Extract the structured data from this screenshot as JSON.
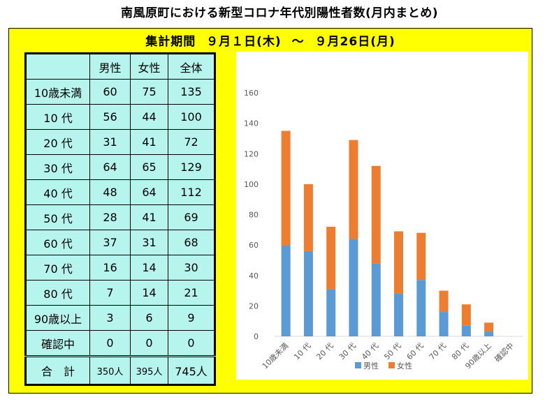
{
  "title": "南風原町における新型コロナ年代別陽性者数(月内まとめ)",
  "period": {
    "label": "集計期間",
    "start": "９月１日(木)",
    "sep": "～",
    "end": "９月26日(月)"
  },
  "table": {
    "headers": [
      "",
      "男性",
      "女性",
      "全体"
    ],
    "rows": [
      [
        "10歳未満",
        "60",
        "75",
        "135"
      ],
      [
        "10 代",
        "56",
        "44",
        "100"
      ],
      [
        "20 代",
        "31",
        "41",
        "72"
      ],
      [
        "30 代",
        "64",
        "65",
        "129"
      ],
      [
        "40 代",
        "48",
        "64",
        "112"
      ],
      [
        "50 代",
        "28",
        "41",
        "69"
      ],
      [
        "60 代",
        "37",
        "31",
        "68"
      ],
      [
        "70 代",
        "16",
        "14",
        "30"
      ],
      [
        "80 代",
        "7",
        "14",
        "21"
      ],
      [
        "90歳以上",
        "3",
        "6",
        "9"
      ],
      [
        "確認中",
        "0",
        "0",
        "0"
      ]
    ],
    "total": [
      "合　計",
      "350人",
      "395人",
      "745人"
    ]
  },
  "chart_data": {
    "type": "bar",
    "stacked": true,
    "categories": [
      "10歳未満",
      "10 代",
      "20 代",
      "30 代",
      "40 代",
      "50 代",
      "60 代",
      "70 代",
      "80 代",
      "90歳以上",
      "確認中"
    ],
    "series": [
      {
        "name": "男性",
        "color": "#5b9bd5",
        "values": [
          60,
          56,
          31,
          64,
          48,
          28,
          37,
          16,
          7,
          3,
          0
        ]
      },
      {
        "name": "女性",
        "color": "#ed7d31",
        "values": [
          75,
          44,
          41,
          65,
          64,
          41,
          31,
          14,
          14,
          6,
          0
        ]
      }
    ],
    "yticks": [
      "0",
      "20",
      "40",
      "60",
      "80",
      "100",
      "120",
      "140",
      "160"
    ],
    "ylim": [
      0,
      160
    ],
    "grid": false,
    "legend": "bottom"
  }
}
